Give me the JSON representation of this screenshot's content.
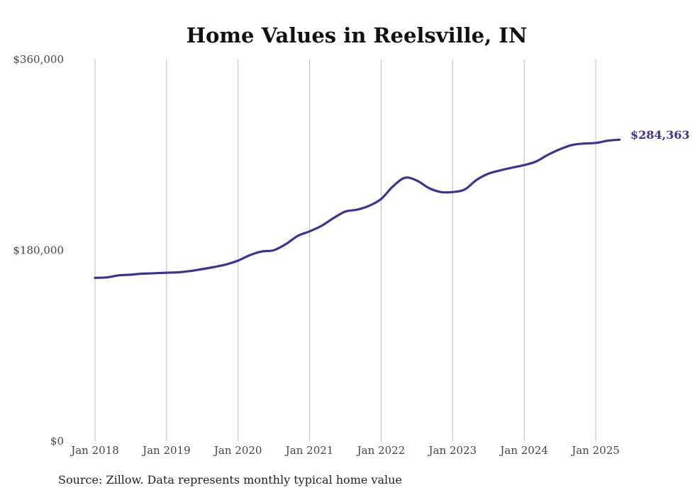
{
  "source_note": "Source: Zillow. Data represents monthly typical home value",
  "colors": {
    "line": "#3b3494",
    "grid": "#bdbdbd",
    "text": "#444444"
  },
  "chart_data": {
    "type": "line",
    "title": "Home Values in Reelsville, IN",
    "xlabel": "",
    "ylabel": "",
    "ylim": [
      0,
      360000
    ],
    "grid": {
      "x": true,
      "y": false
    },
    "y_ticks": [
      {
        "value": 0,
        "label": "$0"
      },
      {
        "value": 180000,
        "label": "$180,000"
      },
      {
        "value": 360000,
        "label": "$360,000"
      }
    ],
    "x_ticks": [
      {
        "value": "2018-01",
        "label": "Jan 2018"
      },
      {
        "value": "2019-01",
        "label": "Jan 2019"
      },
      {
        "value": "2020-01",
        "label": "Jan 2020"
      },
      {
        "value": "2021-01",
        "label": "Jan 2021"
      },
      {
        "value": "2022-01",
        "label": "Jan 2022"
      },
      {
        "value": "2023-01",
        "label": "Jan 2023"
      },
      {
        "value": "2024-01",
        "label": "Jan 2024"
      },
      {
        "value": "2025-01",
        "label": "Jan 2025"
      }
    ],
    "end_label": "$284,363",
    "series": [
      {
        "points": [
          [
            "2018-01",
            154000
          ],
          [
            "2018-03",
            154500
          ],
          [
            "2018-05",
            156400
          ],
          [
            "2018-07",
            157000
          ],
          [
            "2018-09",
            158000
          ],
          [
            "2018-11",
            158400
          ],
          [
            "2019-01",
            158900
          ],
          [
            "2019-03",
            159300
          ],
          [
            "2019-05",
            160500
          ],
          [
            "2019-07",
            162300
          ],
          [
            "2019-09",
            164300
          ],
          [
            "2019-11",
            166700
          ],
          [
            "2020-01",
            170300
          ],
          [
            "2020-03",
            175500
          ],
          [
            "2020-05",
            178900
          ],
          [
            "2020-07",
            180100
          ],
          [
            "2020-09",
            185800
          ],
          [
            "2020-11",
            193600
          ],
          [
            "2021-01",
            197900
          ],
          [
            "2021-03",
            203100
          ],
          [
            "2021-05",
            210400
          ],
          [
            "2021-07",
            216600
          ],
          [
            "2021-09",
            218400
          ],
          [
            "2021-11",
            222000
          ],
          [
            "2022-01",
            228400
          ],
          [
            "2022-03",
            240400
          ],
          [
            "2022-05",
            248400
          ],
          [
            "2022-07",
            245800
          ],
          [
            "2022-09",
            238800
          ],
          [
            "2022-11",
            235000
          ],
          [
            "2023-01",
            235000
          ],
          [
            "2023-03",
            237300
          ],
          [
            "2023-05",
            246300
          ],
          [
            "2023-07",
            252300
          ],
          [
            "2023-09",
            255400
          ],
          [
            "2023-11",
            258000
          ],
          [
            "2024-01",
            260400
          ],
          [
            "2024-03",
            263800
          ],
          [
            "2024-05",
            270200
          ],
          [
            "2024-07",
            275400
          ],
          [
            "2024-09",
            279300
          ],
          [
            "2024-11",
            280700
          ],
          [
            "2025-01",
            281300
          ],
          [
            "2025-03",
            283400
          ],
          [
            "2025-05",
            284363
          ]
        ]
      }
    ]
  }
}
